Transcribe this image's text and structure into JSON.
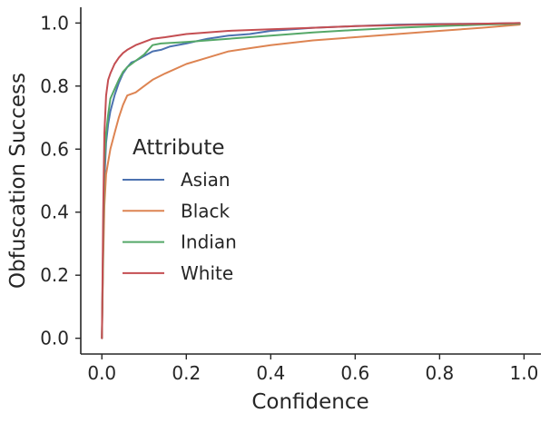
{
  "chart_data": {
    "type": "line",
    "title": "",
    "xlabel": "Confidence",
    "ylabel": "Obfuscation Success",
    "xlim": [
      -0.05,
      1.04
    ],
    "ylim": [
      -0.05,
      1.05
    ],
    "xticks": [
      0.0,
      0.2,
      0.4,
      0.6,
      0.8,
      1.0
    ],
    "xtick_labels": [
      "0.0",
      "0.2",
      "0.4",
      "0.6",
      "0.8",
      "1.0"
    ],
    "yticks": [
      0.0,
      0.2,
      0.4,
      0.6,
      0.8,
      1.0
    ],
    "ytick_labels": [
      "0.0",
      "0.2",
      "0.4",
      "0.6",
      "0.8",
      "1.0"
    ],
    "grid": false,
    "legend": {
      "title": "Attribute",
      "position": "center-left"
    },
    "series": [
      {
        "name": "Asian",
        "color": "#4c72b0",
        "x": [
          0.0,
          0.003,
          0.006,
          0.01,
          0.015,
          0.02,
          0.03,
          0.04,
          0.05,
          0.06,
          0.07,
          0.08,
          0.1,
          0.12,
          0.14,
          0.16,
          0.2,
          0.25,
          0.3,
          0.35,
          0.4,
          0.5,
          0.6,
          0.7,
          0.8,
          0.9,
          0.99
        ],
        "values": [
          0.0,
          0.3,
          0.5,
          0.62,
          0.68,
          0.72,
          0.77,
          0.81,
          0.84,
          0.86,
          0.875,
          0.88,
          0.895,
          0.91,
          0.915,
          0.925,
          0.935,
          0.95,
          0.96,
          0.965,
          0.975,
          0.985,
          0.99,
          0.995,
          0.997,
          0.998,
          1.0
        ]
      },
      {
        "name": "Black",
        "color": "#dd8452",
        "x": [
          0.0,
          0.003,
          0.006,
          0.01,
          0.015,
          0.02,
          0.03,
          0.04,
          0.05,
          0.06,
          0.08,
          0.1,
          0.12,
          0.15,
          0.2,
          0.25,
          0.3,
          0.35,
          0.4,
          0.5,
          0.6,
          0.7,
          0.8,
          0.9,
          0.99
        ],
        "values": [
          0.0,
          0.25,
          0.42,
          0.52,
          0.56,
          0.6,
          0.65,
          0.7,
          0.74,
          0.77,
          0.78,
          0.8,
          0.82,
          0.84,
          0.87,
          0.89,
          0.91,
          0.92,
          0.93,
          0.945,
          0.955,
          0.965,
          0.975,
          0.985,
          0.995
        ]
      },
      {
        "name": "Indian",
        "color": "#55a868",
        "x": [
          0.0,
          0.003,
          0.006,
          0.01,
          0.015,
          0.02,
          0.03,
          0.04,
          0.05,
          0.06,
          0.08,
          0.1,
          0.12,
          0.14,
          0.2,
          0.25,
          0.3,
          0.4,
          0.5,
          0.6,
          0.7,
          0.8,
          0.9,
          0.99
        ],
        "values": [
          0.0,
          0.32,
          0.55,
          0.65,
          0.71,
          0.76,
          0.79,
          0.82,
          0.845,
          0.86,
          0.88,
          0.9,
          0.93,
          0.935,
          0.94,
          0.945,
          0.95,
          0.96,
          0.97,
          0.978,
          0.985,
          0.99,
          0.995,
          0.998
        ]
      },
      {
        "name": "White",
        "color": "#c44e52",
        "x": [
          0.0,
          0.003,
          0.006,
          0.01,
          0.015,
          0.02,
          0.03,
          0.04,
          0.05,
          0.06,
          0.08,
          0.1,
          0.12,
          0.15,
          0.2,
          0.25,
          0.3,
          0.4,
          0.5,
          0.6,
          0.7,
          0.8,
          0.9,
          0.99
        ],
        "values": [
          0.0,
          0.4,
          0.65,
          0.77,
          0.82,
          0.84,
          0.87,
          0.89,
          0.905,
          0.915,
          0.93,
          0.94,
          0.95,
          0.955,
          0.965,
          0.97,
          0.975,
          0.98,
          0.985,
          0.99,
          0.993,
          0.996,
          0.998,
          1.0
        ]
      }
    ]
  }
}
